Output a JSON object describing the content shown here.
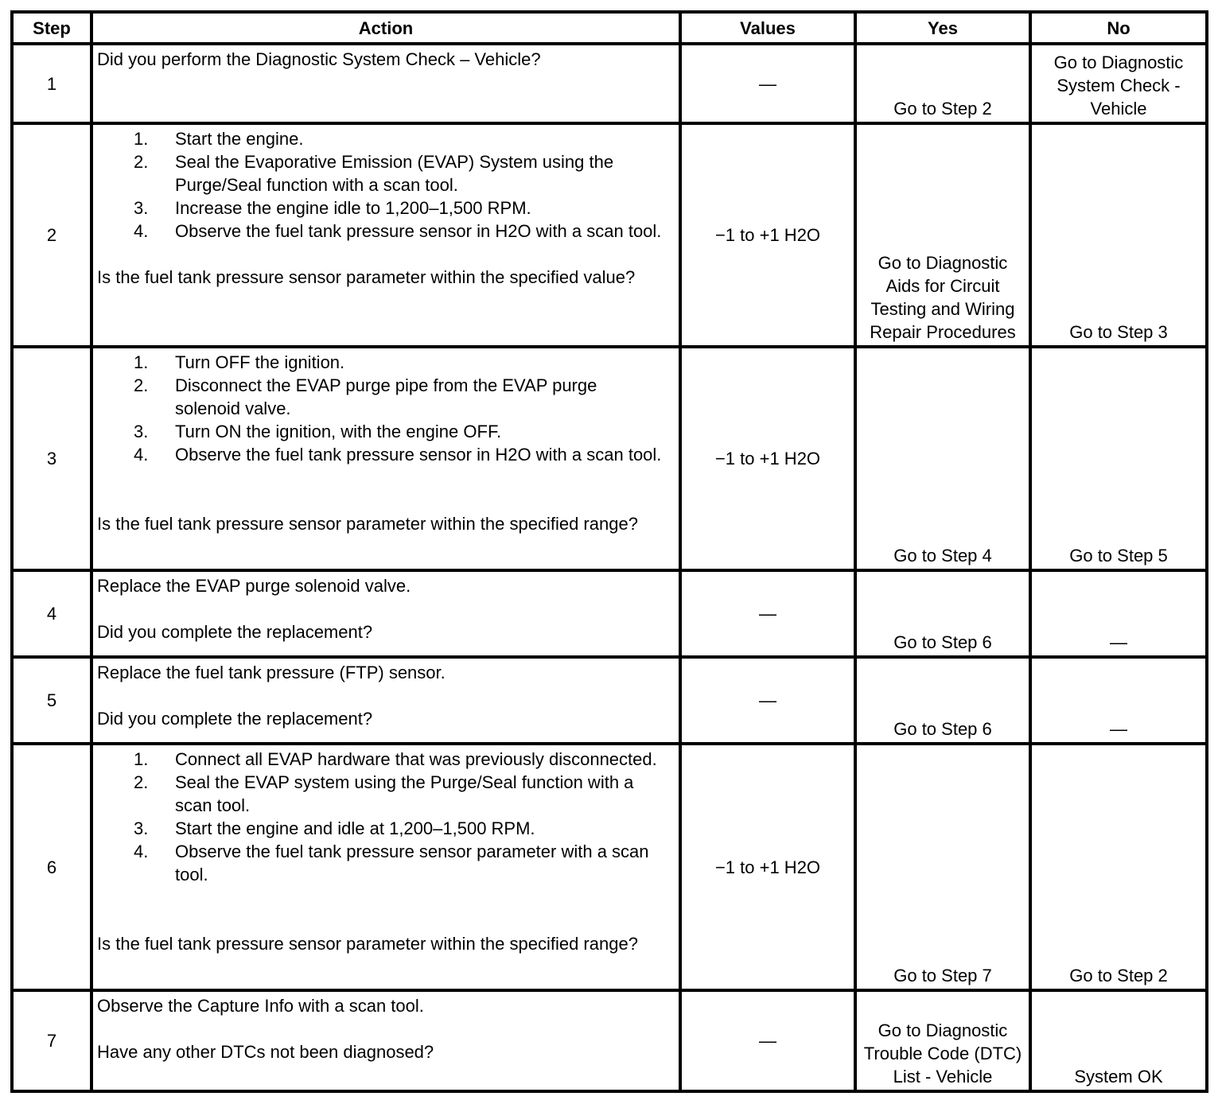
{
  "headers": {
    "step": "Step",
    "action": "Action",
    "values": "Values",
    "yes": "Yes",
    "no": "No"
  },
  "rows": [
    {
      "step": "1",
      "intro": "Did you perform the Diagnostic System Check – Vehicle?",
      "steps": [],
      "question": "",
      "values": "—",
      "yes": "Go to Step 2",
      "no": "Go to Diagnostic System Check - Vehicle"
    },
    {
      "step": "2",
      "intro": "",
      "steps": [
        "Start the engine.",
        "Seal the Evaporative Emission (EVAP) System using the Purge/Seal function with a scan tool.",
        "Increase the engine idle to 1,200–1,500 RPM.",
        "Observe the fuel tank pressure sensor in H2O with a scan tool."
      ],
      "question": "Is the fuel tank pressure sensor parameter within the specified value?",
      "values": "−1 to +1 H2O",
      "yes": "Go to Diagnostic Aids for Circuit Testing and Wiring Repair Procedures",
      "no": "Go to Step 3"
    },
    {
      "step": "3",
      "intro": "",
      "steps": [
        "Turn OFF the ignition.",
        "Disconnect the EVAP purge pipe from the EVAP purge solenoid valve.",
        "Turn ON the ignition, with the engine OFF.",
        "Observe the fuel tank pressure sensor in H2O with a scan tool."
      ],
      "question": "Is the fuel tank pressure sensor parameter within the specified range?",
      "values": "−1 to +1 H2O",
      "yes": "Go to Step 4",
      "no": "Go to Step 5"
    },
    {
      "step": "4",
      "intro": "Replace the EVAP purge solenoid valve.",
      "steps": [],
      "question": "Did you complete the replacement?",
      "values": "—",
      "yes": "Go to Step 6",
      "no": "—"
    },
    {
      "step": "5",
      "intro": "Replace the fuel tank pressure (FTP) sensor.",
      "steps": [],
      "question": "Did you complete the replacement?",
      "values": "—",
      "yes": "Go to Step 6",
      "no": "—"
    },
    {
      "step": "6",
      "intro": "",
      "steps": [
        "Connect all EVAP hardware that was previously disconnected.",
        "Seal the EVAP system using the Purge/Seal function with a scan tool.",
        "Start the engine and idle at 1,200–1,500 RPM.",
        "Observe the fuel tank pressure sensor parameter with a scan tool."
      ],
      "question": "Is the fuel tank pressure sensor parameter within the specified range?",
      "values": "−1 to +1 H2O",
      "yes": "Go to Step 7",
      "no": "Go to Step 2"
    },
    {
      "step": "7",
      "intro": "Observe the Capture Info with a scan tool.",
      "steps": [],
      "question": "Have any other DTCs not been diagnosed?",
      "values": "—",
      "yes": "Go to Diagnostic Trouble Code (DTC) List - Vehicle",
      "no": "System OK"
    }
  ]
}
